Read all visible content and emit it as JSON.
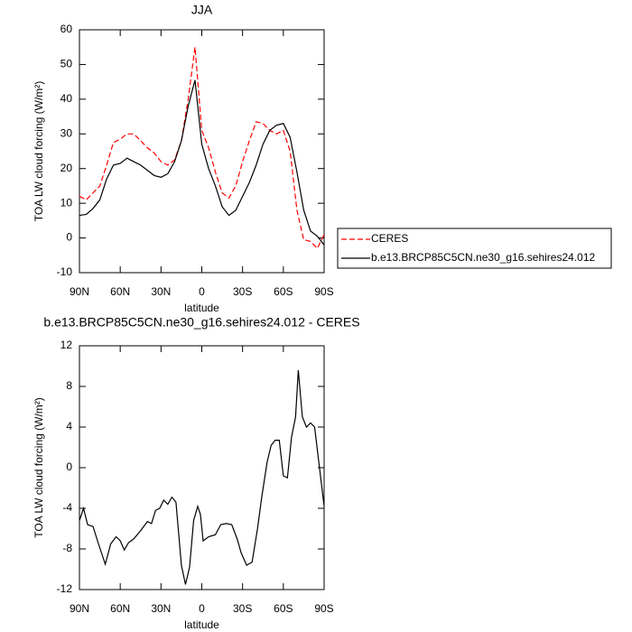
{
  "chart_data": [
    {
      "type": "line",
      "title": "JJA",
      "xlabel": "latitude",
      "ylabel": "TOA LW cloud forcing (W/m²)",
      "x": [
        90,
        85,
        80,
        75,
        70,
        65,
        60,
        55,
        50,
        45,
        40,
        35,
        30,
        25,
        20,
        15,
        10,
        5,
        0,
        -5,
        -10,
        -15,
        -20,
        -25,
        -30,
        -35,
        -40,
        -45,
        -50,
        -55,
        -60,
        -65,
        -70,
        -75,
        -80,
        -85,
        -90
      ],
      "series": [
        {
          "name": "CERES",
          "color": "#ff0000",
          "dashed": true,
          "values": [
            12,
            11,
            13,
            15,
            21,
            27.5,
            28.5,
            30,
            30,
            28,
            26,
            24.5,
            22,
            21,
            22.5,
            28,
            40,
            55,
            31,
            26,
            19,
            13,
            11.5,
            15,
            22,
            28,
            33.5,
            33,
            31,
            30,
            31,
            25,
            8,
            -0.5,
            -1,
            -3,
            1
          ]
        },
        {
          "name": "b.e13.BRCP85C5CN.ne30_g16.sehires24.012",
          "color": "#000000",
          "dashed": false,
          "values": [
            6.5,
            6.8,
            8.5,
            11,
            17,
            21,
            21.5,
            23,
            22,
            21,
            19.5,
            18,
            17.5,
            18.5,
            22,
            28,
            38,
            45.5,
            27,
            20,
            15,
            9,
            6.5,
            8,
            12,
            16,
            21,
            27,
            31,
            32.5,
            33,
            29,
            19,
            8,
            2,
            0.5,
            -2
          ]
        }
      ],
      "xlim": [
        90,
        -90
      ],
      "ylim": [
        -10,
        60
      ],
      "xticks": [
        {
          "value": 90,
          "label": "90N"
        },
        {
          "value": 60,
          "label": "60N"
        },
        {
          "value": 30,
          "label": "30N"
        },
        0,
        {
          "value": -30,
          "label": "30S"
        },
        {
          "value": -60,
          "label": "60S"
        },
        {
          "value": -90,
          "label": "90S"
        }
      ],
      "yticks": [
        -10,
        0,
        10,
        20,
        30,
        40,
        50,
        60
      ],
      "legend": "right"
    },
    {
      "type": "line",
      "title": "b.e13.BRCP85C5CN.ne30_g16.sehires24.012 - CERES",
      "xlabel": "latitude",
      "ylabel": "TOA LW cloud forcing (W/m²)",
      "x": [
        90,
        87,
        84,
        80,
        76,
        71,
        67,
        63,
        60,
        57,
        54,
        50,
        45,
        40,
        37,
        34,
        31,
        28,
        25,
        22,
        19,
        15,
        12,
        9,
        6,
        3,
        1,
        -1,
        -5,
        -10,
        -14,
        -18,
        -22,
        -26,
        -29,
        -33,
        -37,
        -41,
        -44,
        -48,
        -51,
        -54,
        -57,
        -60,
        -63,
        -66,
        -69,
        -71,
        -74,
        -77,
        -80,
        -83,
        -90
      ],
      "color": "#000000",
      "values": [
        -5.2,
        -4,
        -5.6,
        -5.8,
        -7.5,
        -9.5,
        -7.5,
        -6.8,
        -7.2,
        -8.1,
        -7.4,
        -7.0,
        -6.2,
        -5.3,
        -5.5,
        -4.2,
        -4.0,
        -3.2,
        -3.6,
        -2.9,
        -3.4,
        -9.6,
        -11.5,
        -9.8,
        -5.2,
        -3.8,
        -4.6,
        -7.2,
        -6.8,
        -6.6,
        -5.6,
        -5.5,
        -5.6,
        -7.0,
        -8.4,
        -9.6,
        -9.3,
        -6,
        -3,
        0.5,
        2.2,
        2.7,
        2.7,
        -0.8,
        -1,
        3,
        5,
        9.6,
        5,
        4,
        4.4,
        4,
        -3.8
      ],
      "xlim": [
        90,
        -90
      ],
      "ylim": [
        -12,
        12
      ],
      "xticks": [
        {
          "value": 90,
          "label": "90N"
        },
        {
          "value": 60,
          "label": "60N"
        },
        {
          "value": 30,
          "label": "30N"
        },
        0,
        {
          "value": -30,
          "label": "30S"
        },
        {
          "value": -60,
          "label": "60S"
        },
        {
          "value": -90,
          "label": "90S"
        }
      ],
      "yticks": [
        -12,
        -8,
        -4,
        0,
        4,
        8,
        12
      ]
    }
  ]
}
